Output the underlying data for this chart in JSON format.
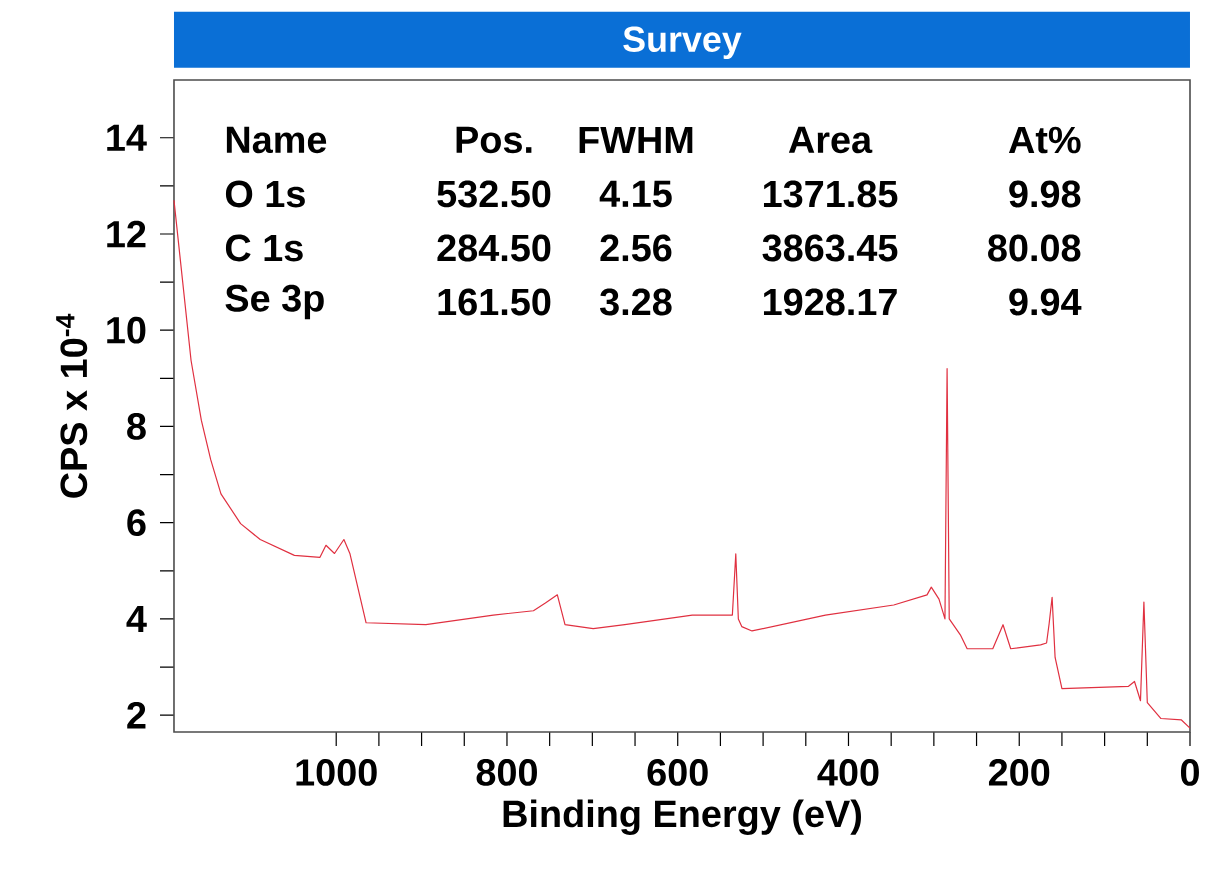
{
  "chart_data": {
    "type": "line",
    "title": "Survey",
    "xlabel": "Binding Energy (eV)",
    "ylabel": "CPS x 10$^{-4}$",
    "x": [
      1190,
      1170,
      1158,
      1147,
      1135,
      1112,
      1089,
      1049,
      1019,
      1012,
      1002,
      991,
      984,
      965,
      895,
      816,
      769,
      755,
      741,
      732,
      699,
      662,
      583,
      536,
      532,
      529,
      525,
      513,
      427,
      347,
      308,
      303,
      294,
      287,
      284.5,
      282,
      269,
      261,
      231,
      219,
      210,
      175,
      168,
      165,
      161.5,
      158,
      150,
      72,
      65,
      58,
      54,
      50,
      34,
      10,
      0
    ],
    "series": [
      {
        "color": "#e03040",
        "values": [
          12.7,
          9.37,
          8.13,
          7.31,
          6.6,
          5.98,
          5.65,
          5.32,
          5.28,
          5.53,
          5.36,
          5.65,
          5.36,
          3.92,
          3.88,
          4.08,
          4.17,
          4.33,
          4.5,
          3.88,
          3.8,
          3.88,
          4.08,
          4.08,
          5.35,
          4.0,
          3.84,
          3.75,
          4.08,
          4.29,
          4.5,
          4.66,
          4.41,
          4.0,
          9.2,
          4.0,
          3.67,
          3.38,
          3.38,
          3.88,
          3.38,
          3.46,
          3.5,
          3.9,
          4.45,
          3.2,
          2.55,
          2.6,
          2.7,
          2.3,
          4.35,
          2.26,
          1.93,
          1.9,
          1.73
        ]
      }
    ],
    "xlim": [
      1190,
      0
    ],
    "xticks": [
      1000,
      800,
      600,
      400,
      200,
      0
    ],
    "ylim": [
      1.65,
      15.2
    ],
    "yticks": [
      2,
      4,
      6,
      8,
      10,
      12,
      14
    ],
    "annotations": [
      "Name",
      "Pos.",
      "FWHM",
      "Area",
      "At%",
      "O 1s",
      "532.50",
      "4.15",
      "1371.85",
      "9.98",
      "C 1s",
      "284.50",
      "2.56",
      "3863.45",
      "80.08",
      "Se 3p",
      "161.50",
      "3.28",
      "1928.17",
      "9.94"
    ]
  }
}
